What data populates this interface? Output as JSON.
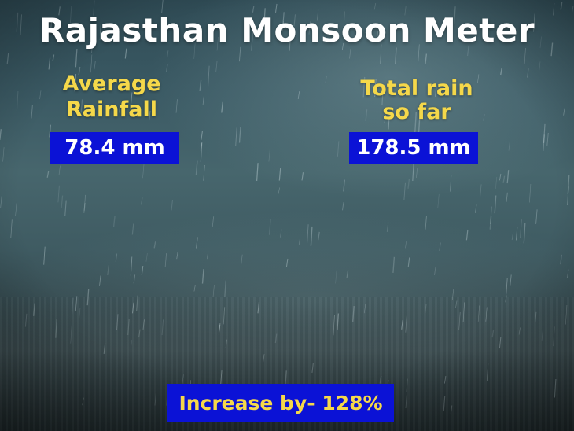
{
  "title": "Rajasthan Monsoon Meter",
  "average": {
    "label_line1": "Average",
    "label_line2": "Rainfall",
    "value": "78.4 mm"
  },
  "total": {
    "label_line1": "Total rain",
    "label_line2": "so far",
    "value": "178.5 mm"
  },
  "increase": "Increase by- 128%",
  "colors": {
    "title": "#ffffff",
    "label": "#f5d84a",
    "box": "#0b12d6",
    "box_text": "#ffffff",
    "increase_text": "#f5d84a"
  }
}
